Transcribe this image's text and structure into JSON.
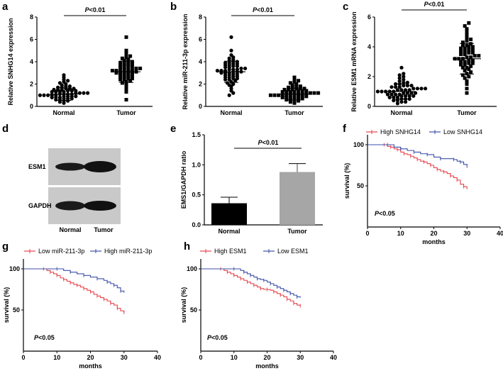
{
  "panels": {
    "a": {
      "letter": "a",
      "chart_data": {
        "type": "scatter",
        "categories": [
          "Normal",
          "Tumor"
        ],
        "ylabel": "Relative SNHG14 expression",
        "ylim": [
          0,
          8
        ],
        "yticks": [
          "0",
          "2",
          "4",
          "6",
          "8"
        ],
        "significance": "P<0.01",
        "series": [
          {
            "name": "Normal",
            "marker": "circle",
            "mean": 1.1,
            "values": [
              0.3,
              0.4,
              0.5,
              0.5,
              0.6,
              0.6,
              0.7,
              0.7,
              0.7,
              0.8,
              0.8,
              0.8,
              0.9,
              0.9,
              0.9,
              0.9,
              1.0,
              1.0,
              1.0,
              1.0,
              1.0,
              1.1,
              1.1,
              1.1,
              1.1,
              1.2,
              1.2,
              1.2,
              1.2,
              1.3,
              1.3,
              1.3,
              1.3,
              1.4,
              1.4,
              1.4,
              1.5,
              1.5,
              1.5,
              1.6,
              1.6,
              1.6,
              1.7,
              1.7,
              1.8,
              1.8,
              1.9,
              2.0,
              2.1,
              2.2,
              2.3,
              2.4,
              2.6,
              2.8
            ]
          },
          {
            "name": "Tumor",
            "marker": "square",
            "mean": 3.1,
            "values": [
              0.6,
              1.3,
              1.6,
              1.8,
              2.0,
              2.1,
              2.2,
              2.3,
              2.4,
              2.4,
              2.5,
              2.5,
              2.6,
              2.6,
              2.7,
              2.7,
              2.8,
              2.8,
              2.9,
              2.9,
              3.0,
              3.0,
              3.0,
              3.1,
              3.1,
              3.1,
              3.2,
              3.2,
              3.2,
              3.3,
              3.3,
              3.3,
              3.4,
              3.4,
              3.5,
              3.5,
              3.6,
              3.6,
              3.7,
              3.7,
              3.8,
              3.8,
              3.9,
              3.9,
              4.0,
              4.0,
              4.1,
              4.2,
              4.3,
              4.4,
              4.5,
              4.6,
              4.8,
              5.0,
              6.2
            ]
          }
        ]
      }
    },
    "b": {
      "letter": "b",
      "chart_data": {
        "type": "scatter",
        "categories": [
          "Normal",
          "Tumor"
        ],
        "ylabel": "Relative miR-211-3p expression",
        "ylim": [
          0,
          8
        ],
        "yticks": [
          "0",
          "2",
          "4",
          "6",
          "8"
        ],
        "significance": "P<0.01",
        "series": [
          {
            "name": "Normal",
            "marker": "circle",
            "mean": 3.1,
            "values": [
              1.0,
              1.2,
              1.4,
              1.6,
              1.8,
              1.9,
              2.0,
              2.1,
              2.2,
              2.3,
              2.4,
              2.4,
              2.5,
              2.5,
              2.6,
              2.6,
              2.7,
              2.7,
              2.8,
              2.8,
              2.9,
              2.9,
              3.0,
              3.0,
              3.0,
              3.1,
              3.1,
              3.1,
              3.2,
              3.2,
              3.2,
              3.3,
              3.3,
              3.3,
              3.4,
              3.4,
              3.5,
              3.5,
              3.6,
              3.6,
              3.7,
              3.7,
              3.8,
              3.8,
              3.9,
              3.9,
              4.0,
              4.0,
              4.1,
              4.2,
              4.3,
              4.4,
              4.6,
              5.0,
              6.2
            ]
          },
          {
            "name": "Tumor",
            "marker": "square",
            "mean": 1.1,
            "values": [
              0.3,
              0.4,
              0.5,
              0.5,
              0.6,
              0.6,
              0.7,
              0.7,
              0.7,
              0.8,
              0.8,
              0.8,
              0.9,
              0.9,
              0.9,
              0.9,
              1.0,
              1.0,
              1.0,
              1.0,
              1.0,
              1.1,
              1.1,
              1.1,
              1.1,
              1.2,
              1.2,
              1.2,
              1.2,
              1.3,
              1.3,
              1.3,
              1.3,
              1.4,
              1.4,
              1.4,
              1.5,
              1.5,
              1.5,
              1.6,
              1.6,
              1.6,
              1.7,
              1.7,
              1.8,
              1.8,
              1.9,
              2.0,
              2.1,
              2.2,
              2.3,
              2.4,
              2.6
            ]
          }
        ]
      }
    },
    "c": {
      "letter": "c",
      "chart_data": {
        "type": "scatter",
        "categories": [
          "Normal",
          "Tumor"
        ],
        "ylabel": "Relative ESM1 mRNA expression",
        "ylim": [
          0,
          6
        ],
        "yticks": [
          "0",
          "2",
          "4",
          "6"
        ],
        "significance": "P<0.01",
        "series": [
          {
            "name": "Normal",
            "marker": "circle",
            "mean": 1.0,
            "values": [
              0.2,
              0.3,
              0.3,
              0.4,
              0.4,
              0.5,
              0.5,
              0.5,
              0.6,
              0.6,
              0.6,
              0.7,
              0.7,
              0.7,
              0.7,
              0.8,
              0.8,
              0.8,
              0.8,
              0.9,
              0.9,
              0.9,
              0.9,
              1.0,
              1.0,
              1.0,
              1.0,
              1.0,
              1.1,
              1.1,
              1.1,
              1.1,
              1.2,
              1.2,
              1.2,
              1.2,
              1.3,
              1.3,
              1.3,
              1.4,
              1.4,
              1.4,
              1.5,
              1.5,
              1.6,
              1.6,
              1.7,
              1.8,
              1.9,
              2.0,
              2.1,
              2.2,
              2.6
            ]
          },
          {
            "name": "Tumor",
            "marker": "square",
            "mean": 3.2,
            "values": [
              0.9,
              1.2,
              1.5,
              1.7,
              1.9,
              2.0,
              2.1,
              2.2,
              2.3,
              2.4,
              2.5,
              2.6,
              2.6,
              2.7,
              2.8,
              2.8,
              2.9,
              2.9,
              3.0,
              3.0,
              3.1,
              3.1,
              3.2,
              3.2,
              3.2,
              3.3,
              3.3,
              3.4,
              3.4,
              3.5,
              3.5,
              3.6,
              3.6,
              3.7,
              3.7,
              3.8,
              3.8,
              3.9,
              3.9,
              4.0,
              4.0,
              4.1,
              4.1,
              4.2,
              4.3,
              4.4,
              4.5,
              4.6,
              4.8,
              5.0,
              5.2,
              5.4,
              5.6
            ]
          }
        ]
      }
    },
    "d": {
      "letter": "d",
      "bands": [
        "ESM1",
        "GAPDH"
      ],
      "lanes": [
        "Normal",
        "Tumor"
      ]
    },
    "e": {
      "letter": "e",
      "chart_data": {
        "type": "bar",
        "categories": [
          "Normal",
          "Tumor"
        ],
        "values": [
          0.36,
          0.88
        ],
        "errors": [
          0.1,
          0.14
        ],
        "colors": [
          "#000000",
          "#a6a6a6"
        ],
        "ylabel": "EMS1/GAPDH ratio",
        "ylim": [
          0,
          1.5
        ],
        "yticks": [
          "0.0",
          "0.5",
          "1.0",
          "1.5"
        ],
        "significance": "P<0.01"
      }
    },
    "f": {
      "letter": "f",
      "chart_data": {
        "type": "line",
        "title": "",
        "xlabel": "months",
        "ylabel": "survival (%)",
        "xlim": [
          0,
          40
        ],
        "ylim": [
          0,
          100
        ],
        "xticks": [
          "0",
          "10",
          "20",
          "30",
          "40"
        ],
        "yticks": [
          "50",
          "100"
        ],
        "annotation": "P<0.05",
        "series": [
          {
            "name": "High SNHG14",
            "color": "#e8444c",
            "x": [
              0,
              5,
              6,
              7,
              8,
              9,
              10,
              11,
              12,
              13,
              14,
              15,
              16,
              17,
              18,
              19,
              20,
              21,
              22,
              23,
              24,
              25,
              26,
              27,
              28,
              29,
              30
            ],
            "y": [
              100,
              100,
              98,
              97,
              95,
              94,
              91,
              89,
              88,
              86,
              84,
              82,
              80,
              79,
              77,
              75,
              72,
              70,
              68,
              67,
              65,
              62,
              60,
              57,
              52,
              49,
              46
            ]
          },
          {
            "name": "Low SNHG14",
            "color": "#3c4fa8",
            "x": [
              0,
              6,
              8,
              10,
              12,
              14,
              16,
              18,
              20,
              22,
              24,
              26,
              27,
              28,
              29,
              30
            ],
            "y": [
              100,
              100,
              97,
              95,
              93,
              91,
              89,
              88,
              85,
              83,
              83,
              82,
              80,
              79,
              76,
              74
            ]
          }
        ]
      }
    },
    "g": {
      "letter": "g",
      "chart_data": {
        "type": "line",
        "xlabel": "months",
        "ylabel": "survival (%)",
        "xlim": [
          0,
          40
        ],
        "ylim": [
          0,
          100
        ],
        "xticks": [
          "0",
          "10",
          "20",
          "30",
          "40"
        ],
        "yticks": [
          "50",
          "100"
        ],
        "annotation": "P<0.05",
        "series": [
          {
            "name": "Low miR-211-3p",
            "color": "#e8444c",
            "x": [
              0,
              6,
              7,
              8,
              9,
              10,
              11,
              12,
              13,
              14,
              15,
              16,
              17,
              18,
              19,
              20,
              21,
              22,
              23,
              24,
              25,
              26,
              27,
              28,
              29,
              30
            ],
            "y": [
              100,
              100,
              98,
              96,
              94,
              92,
              89,
              87,
              85,
              83,
              81,
              80,
              78,
              76,
              74,
              72,
              69,
              67,
              65,
              63,
              61,
              58,
              56,
              52,
              49,
              47
            ]
          },
          {
            "name": "High miR-211-3p",
            "color": "#3c4fa8",
            "x": [
              0,
              10,
              12,
              14,
              16,
              18,
              20,
              22,
              24,
              25,
              26,
              27,
              28,
              29,
              30
            ],
            "y": [
              100,
              100,
              98,
              96,
              94,
              92,
              90,
              88,
              86,
              84,
              82,
              80,
              77,
              73,
              71
            ]
          }
        ]
      }
    },
    "h": {
      "letter": "h",
      "chart_data": {
        "type": "line",
        "xlabel": "months",
        "ylabel": "survival (%)",
        "xlim": [
          0,
          40
        ],
        "ylim": [
          0,
          100
        ],
        "xticks": [
          "0",
          "10",
          "20",
          "30",
          "40"
        ],
        "yticks": [
          "50",
          "100"
        ],
        "annotation": "P<0.05",
        "series": [
          {
            "name": "High ESM1",
            "color": "#e8444c",
            "x": [
              0,
              6,
              7,
              8,
              9,
              10,
              11,
              12,
              13,
              14,
              15,
              16,
              17,
              18,
              19,
              20,
              21,
              22,
              23,
              24,
              25,
              26,
              27,
              28,
              29,
              30
            ],
            "y": [
              100,
              100,
              98,
              96,
              94,
              92,
              90,
              88,
              86,
              84,
              82,
              80,
              78,
              76,
              75,
              75,
              74,
              72,
              70,
              68,
              66,
              63,
              61,
              58,
              56,
              55
            ]
          },
          {
            "name": "Low ESM1",
            "color": "#3c4fa8",
            "x": [
              0,
              10,
              12,
              13,
              14,
              15,
              16,
              17,
              18,
              19,
              20,
              21,
              22,
              23,
              24,
              25,
              26,
              27,
              28,
              29,
              30
            ],
            "y": [
              100,
              100,
              98,
              96,
              94,
              92,
              90,
              88,
              87,
              86,
              84,
              82,
              80,
              78,
              76,
              74,
              72,
              70,
              68,
              66,
              65
            ]
          }
        ]
      }
    }
  }
}
